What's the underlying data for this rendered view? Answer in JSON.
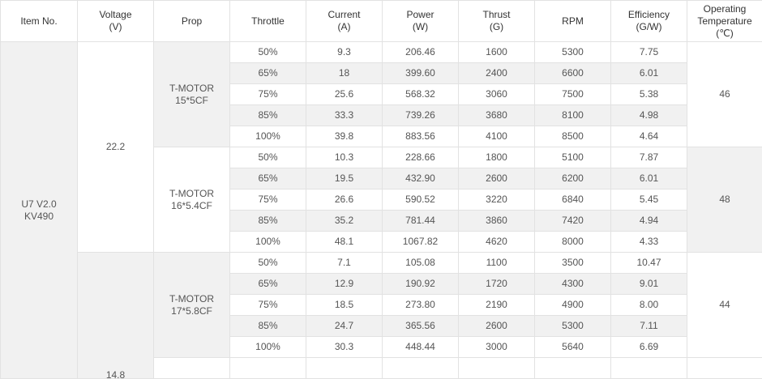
{
  "headers": [
    {
      "line1": "Item No.",
      "line2": ""
    },
    {
      "line1": "Voltage",
      "line2": "(V)"
    },
    {
      "line1": "Prop",
      "line2": ""
    },
    {
      "line1": "Throttle",
      "line2": ""
    },
    {
      "line1": "Current",
      "line2": "(A)"
    },
    {
      "line1": "Power",
      "line2": "(W)"
    },
    {
      "line1": "Thrust",
      "line2": "(G)"
    },
    {
      "line1": "RPM",
      "line2": ""
    },
    {
      "line1": "Efficiency",
      "line2": "(G/W)"
    },
    {
      "line1": "Operating",
      "line2": "Temperature",
      "line3": "(℃)"
    }
  ],
  "item": {
    "line1": "U7 V2.0",
    "line2": "KV490"
  },
  "voltages": [
    "22.2",
    "14.8"
  ],
  "groups": [
    {
      "prop_line1": "T-MOTOR",
      "prop_line2": "15*5CF",
      "temperature": "46",
      "rows": [
        {
          "throttle": "50%",
          "current": "9.3",
          "power": "206.46",
          "thrust": "1600",
          "rpm": "5300",
          "efficiency": "7.75"
        },
        {
          "throttle": "65%",
          "current": "18",
          "power": "399.60",
          "thrust": "2400",
          "rpm": "6600",
          "efficiency": "6.01"
        },
        {
          "throttle": "75%",
          "current": "25.6",
          "power": "568.32",
          "thrust": "3060",
          "rpm": "7500",
          "efficiency": "5.38"
        },
        {
          "throttle": "85%",
          "current": "33.3",
          "power": "739.26",
          "thrust": "3680",
          "rpm": "8100",
          "efficiency": "4.98"
        },
        {
          "throttle": "100%",
          "current": "39.8",
          "power": "883.56",
          "thrust": "4100",
          "rpm": "8500",
          "efficiency": "4.64"
        }
      ]
    },
    {
      "prop_line1": "T-MOTOR",
      "prop_line2": "16*5.4CF",
      "temperature": "48",
      "rows": [
        {
          "throttle": "50%",
          "current": "10.3",
          "power": "228.66",
          "thrust": "1800",
          "rpm": "5100",
          "efficiency": "7.87"
        },
        {
          "throttle": "65%",
          "current": "19.5",
          "power": "432.90",
          "thrust": "2600",
          "rpm": "6200",
          "efficiency": "6.01"
        },
        {
          "throttle": "75%",
          "current": "26.6",
          "power": "590.52",
          "thrust": "3220",
          "rpm": "6840",
          "efficiency": "5.45"
        },
        {
          "throttle": "85%",
          "current": "35.2",
          "power": "781.44",
          "thrust": "3860",
          "rpm": "7420",
          "efficiency": "4.94"
        },
        {
          "throttle": "100%",
          "current": "48.1",
          "power": "1067.82",
          "thrust": "4620",
          "rpm": "8000",
          "efficiency": "4.33"
        }
      ]
    },
    {
      "prop_line1": "T-MOTOR",
      "prop_line2": "17*5.8CF",
      "temperature": "44",
      "rows": [
        {
          "throttle": "50%",
          "current": "7.1",
          "power": "105.08",
          "thrust": "1100",
          "rpm": "3500",
          "efficiency": "10.47"
        },
        {
          "throttle": "65%",
          "current": "12.9",
          "power": "190.92",
          "thrust": "1720",
          "rpm": "4300",
          "efficiency": "9.01"
        },
        {
          "throttle": "75%",
          "current": "18.5",
          "power": "273.80",
          "thrust": "2190",
          "rpm": "4900",
          "efficiency": "8.00"
        },
        {
          "throttle": "85%",
          "current": "24.7",
          "power": "365.56",
          "thrust": "2600",
          "rpm": "5300",
          "efficiency": "7.11"
        },
        {
          "throttle": "100%",
          "current": "30.3",
          "power": "448.44",
          "thrust": "3000",
          "rpm": "5640",
          "efficiency": "6.69"
        }
      ]
    }
  ]
}
